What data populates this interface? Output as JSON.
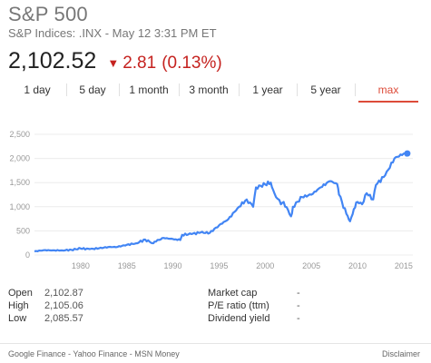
{
  "header": {
    "title": "S&P 500",
    "subtitle_index": "S&P Indices: .INX",
    "subtitle_sep": " - ",
    "subtitle_time": "May 12 3:31 PM ET"
  },
  "quote": {
    "price": "2,102.52",
    "arrow": "▼",
    "change": "2.81",
    "change_pct": "(0.13%)",
    "change_color": "#c5221f"
  },
  "tabs": [
    {
      "label": "1 day",
      "active": false
    },
    {
      "label": "5 day",
      "active": false
    },
    {
      "label": "1 month",
      "active": false
    },
    {
      "label": "3 month",
      "active": false
    },
    {
      "label": "1 year",
      "active": false
    },
    {
      "label": "5 year",
      "active": false
    },
    {
      "label": "max",
      "active": true
    }
  ],
  "chart_data": {
    "type": "line",
    "x_ticks": [
      "1980",
      "1985",
      "1990",
      "1995",
      "2000",
      "2005",
      "2010",
      "2015"
    ],
    "y_ticks": [
      "0",
      "500",
      "1,000",
      "1,500",
      "2,000",
      "2,500"
    ],
    "xlim": [
      1975,
      2016
    ],
    "ylim": [
      0,
      2500
    ],
    "line_color": "#4285f4",
    "grid": true,
    "series": [
      {
        "x": [
          1975,
          1976,
          1977,
          1978,
          1979,
          1980,
          1981,
          1982,
          1983,
          1984,
          1985,
          1986,
          1987,
          1987.8,
          1988,
          1989,
          1990,
          1990.8,
          1991,
          1992,
          1993,
          1994,
          1995,
          1996,
          1997,
          1998,
          1998.7,
          1999,
          2000,
          2000.6,
          2001,
          2001.7,
          2002,
          2002.8,
          2003,
          2004,
          2005,
          2006,
          2007,
          2007.8,
          2008,
          2008.8,
          2009.2,
          2009.6,
          2010,
          2010.5,
          2011,
          2011.7,
          2012,
          2013,
          2014,
          2015,
          2015.4
        ],
        "y": [
          75,
          100,
          95,
          96,
          107,
          135,
          122,
          140,
          165,
          167,
          211,
          242,
          320,
          245,
          277,
          353,
          330,
          310,
          417,
          435,
          466,
          459,
          615,
          740,
          970,
          1150,
          1000,
          1400,
          1460,
          1500,
          1280,
          1050,
          1100,
          800,
          1000,
          1200,
          1250,
          1400,
          1530,
          1470,
          1250,
          850,
          700,
          950,
          1100,
          1050,
          1280,
          1150,
          1450,
          1650,
          2000,
          2100,
          2102.52
        ]
      }
    ]
  },
  "stats": {
    "col1": [
      {
        "label": "Open",
        "value": "2,102.87"
      },
      {
        "label": "High",
        "value": "2,105.06"
      },
      {
        "label": "Low",
        "value": "2,085.57"
      }
    ],
    "col2": [
      {
        "label": "Market cap",
        "value": "-"
      },
      {
        "label": "P/E ratio (ttm)",
        "value": "-"
      },
      {
        "label": "Dividend yield",
        "value": "-"
      }
    ]
  },
  "footer": {
    "sources": "Google Finance - Yahoo Finance - MSN Money",
    "disclaimer": "Disclaimer"
  }
}
